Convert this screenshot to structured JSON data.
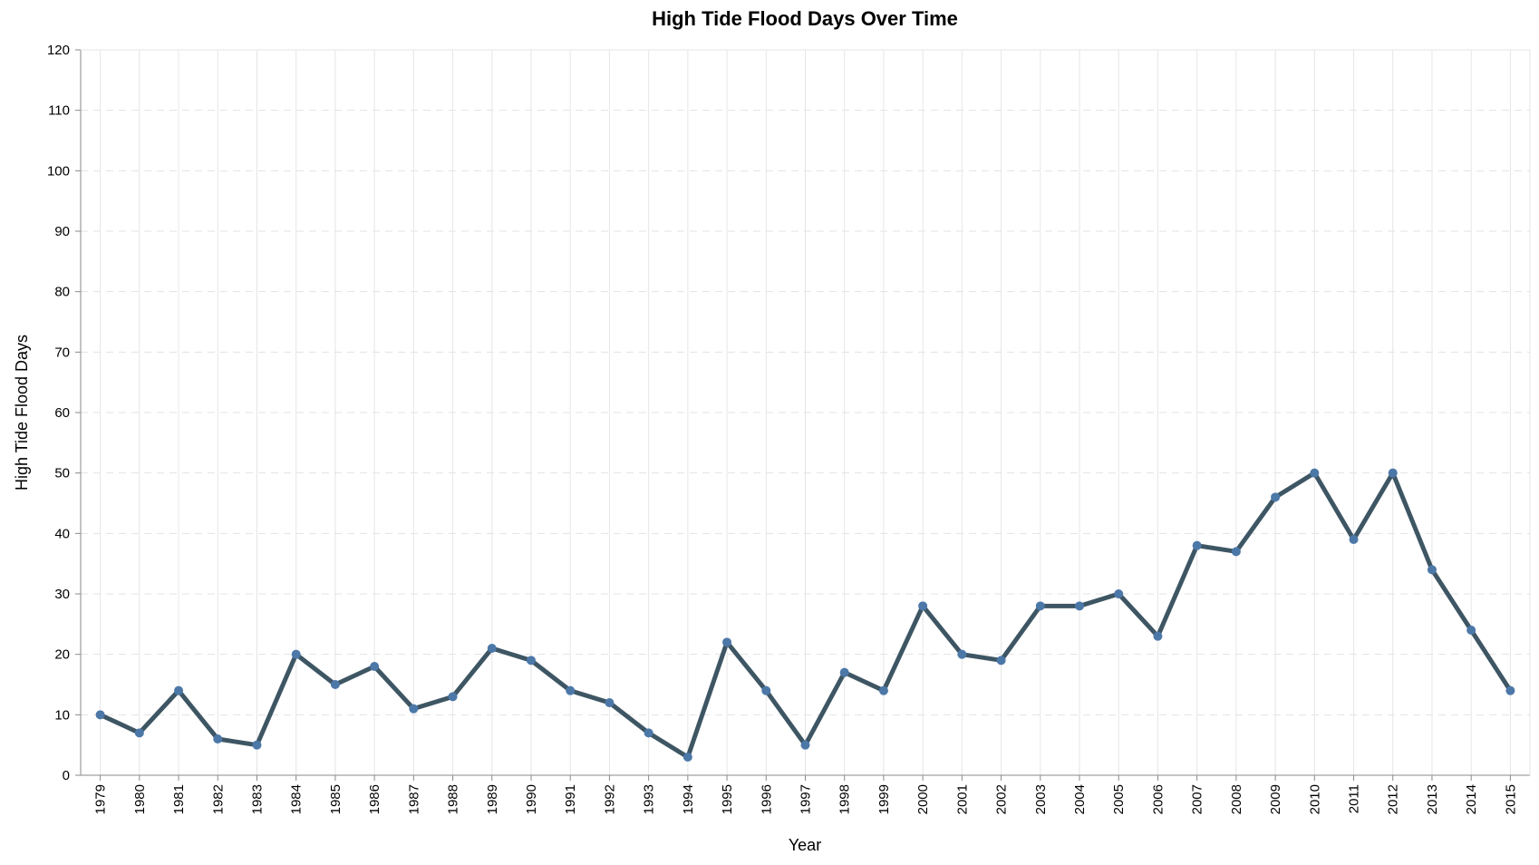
{
  "chart_data": {
    "type": "line",
    "title": "High Tide Flood Days Over Time",
    "xlabel": "Year",
    "ylabel": "High Tide Flood Days",
    "ylim": [
      0,
      120
    ],
    "yticks": [
      0,
      10,
      20,
      30,
      40,
      50,
      60,
      70,
      80,
      90,
      100,
      110,
      120
    ],
    "grid": true,
    "categories": [
      "1979",
      "1980",
      "1981",
      "1982",
      "1983",
      "1984",
      "1985",
      "1986",
      "1987",
      "1988",
      "1989",
      "1990",
      "1991",
      "1992",
      "1993",
      "1994",
      "1995",
      "1996",
      "1997",
      "1998",
      "1999",
      "2000",
      "2001",
      "2002",
      "2003",
      "2004",
      "2005",
      "2006",
      "2007",
      "2008",
      "2009",
      "2010",
      "2011",
      "2012",
      "2013",
      "2014",
      "2015"
    ],
    "series": [
      {
        "values": [
          10,
          7,
          14,
          6,
          5,
          20,
          15,
          18,
          11,
          13,
          21,
          19,
          14,
          12,
          7,
          3,
          22,
          14,
          5,
          17,
          14,
          28,
          20,
          19,
          28,
          28,
          30,
          23,
          38,
          37,
          46,
          50,
          39,
          50,
          34,
          24,
          14
        ]
      }
    ]
  },
  "colors": {
    "line": "#3e5664",
    "point": "#4c78a8"
  }
}
